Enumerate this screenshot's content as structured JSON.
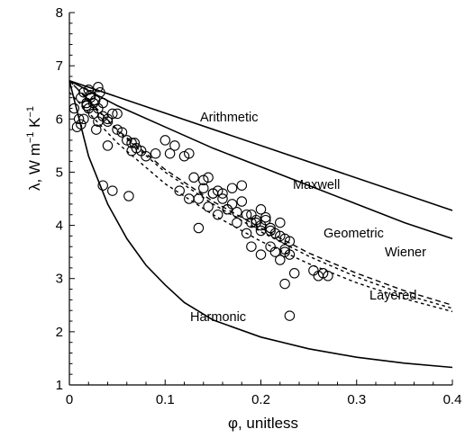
{
  "chart_data": {
    "type": "scatter",
    "xlabel": "φ, unitless",
    "ylabel_parts": {
      "main": "λ, W m",
      "sup1": "−1",
      "mid": " K",
      "sup2": "−1"
    },
    "xlim": [
      0,
      0.4
    ],
    "ylim": [
      1,
      8
    ],
    "x_ticks": [
      0,
      0.1,
      0.2,
      0.3,
      0.4
    ],
    "x_tick_labels": [
      "0",
      "0.1",
      "0.2",
      "0.3",
      "0.4"
    ],
    "y_ticks": [
      1,
      2,
      3,
      4,
      5,
      6,
      7,
      8
    ],
    "y_tick_labels": [
      "1",
      "2",
      "3",
      "4",
      "5",
      "6",
      "7",
      "8"
    ],
    "grid": false,
    "curves": [
      {
        "name": "Arithmetic",
        "style": "solid",
        "x": [
          0,
          0.4
        ],
        "y": [
          6.72,
          4.28
        ]
      },
      {
        "name": "Maxwell",
        "style": "solid",
        "x": [
          0,
          0.05,
          0.1,
          0.15,
          0.2,
          0.25,
          0.3,
          0.35,
          0.4
        ],
        "y": [
          6.72,
          6.25,
          5.85,
          5.45,
          5.1,
          4.75,
          4.4,
          4.05,
          3.75
        ]
      },
      {
        "name": "Geometric",
        "style": "dashed",
        "x": [
          0,
          0.05,
          0.1,
          0.15,
          0.2,
          0.25,
          0.3,
          0.35,
          0.4
        ],
        "y": [
          6.72,
          5.8,
          5.05,
          4.45,
          3.95,
          3.48,
          3.1,
          2.77,
          2.5
        ]
      },
      {
        "name": "Wiener",
        "style": "dotted",
        "x": [
          0,
          0.05,
          0.1,
          0.15,
          0.2,
          0.25,
          0.3,
          0.35,
          0.4
        ],
        "y": [
          6.72,
          5.78,
          5.0,
          4.4,
          3.88,
          3.42,
          3.03,
          2.7,
          2.44
        ]
      },
      {
        "name": "Layered",
        "style": "dotted",
        "x": [
          0,
          0.05,
          0.1,
          0.15,
          0.2,
          0.25,
          0.3,
          0.35,
          0.4
        ],
        "y": [
          6.5,
          5.55,
          4.78,
          4.2,
          3.7,
          3.28,
          2.92,
          2.62,
          2.38
        ]
      },
      {
        "name": "Harmonic",
        "style": "solid",
        "x": [
          0,
          0.02,
          0.04,
          0.06,
          0.08,
          0.1,
          0.12,
          0.15,
          0.2,
          0.25,
          0.3,
          0.35,
          0.4
        ],
        "y": [
          6.72,
          5.3,
          4.4,
          3.75,
          3.25,
          2.88,
          2.55,
          2.22,
          1.9,
          1.68,
          1.52,
          1.41,
          1.33
        ]
      }
    ],
    "points": {
      "x": [
        0.005,
        0.01,
        0.012,
        0.015,
        0.018,
        0.02,
        0.02,
        0.022,
        0.025,
        0.025,
        0.027,
        0.03,
        0.03,
        0.032,
        0.035,
        0.008,
        0.012,
        0.015,
        0.018,
        0.022,
        0.028,
        0.03,
        0.035,
        0.04,
        0.045,
        0.04,
        0.05,
        0.05,
        0.06,
        0.055,
        0.065,
        0.07,
        0.075,
        0.065,
        0.068,
        0.08,
        0.09,
        0.1,
        0.105,
        0.11,
        0.12,
        0.125,
        0.13,
        0.14,
        0.145,
        0.15,
        0.155,
        0.16,
        0.165,
        0.17,
        0.175,
        0.18,
        0.185,
        0.19,
        0.195,
        0.2,
        0.2,
        0.205,
        0.21,
        0.215,
        0.22,
        0.225,
        0.23,
        0.135,
        0.14,
        0.15,
        0.16,
        0.17,
        0.18,
        0.19,
        0.195,
        0.2,
        0.205,
        0.21,
        0.22,
        0.225,
        0.23,
        0.115,
        0.125,
        0.135,
        0.145,
        0.155,
        0.165,
        0.175,
        0.185,
        0.19,
        0.2,
        0.21,
        0.22,
        0.225,
        0.23,
        0.235,
        0.255,
        0.26,
        0.265,
        0.27,
        0.225,
        0.215,
        0.04,
        0.045,
        0.035,
        0.062
      ],
      "y": [
        6.2,
        6.0,
        6.4,
        6.5,
        6.3,
        6.2,
        6.55,
        6.4,
        6.3,
        6.1,
        6.35,
        6.6,
        6.2,
        6.5,
        6.3,
        5.85,
        5.9,
        6.0,
        6.25,
        6.45,
        5.8,
        5.95,
        6.05,
        6.0,
        6.1,
        5.95,
        6.1,
        5.8,
        5.6,
        5.75,
        5.55,
        5.45,
        5.4,
        5.4,
        5.55,
        5.3,
        5.35,
        5.6,
        5.35,
        5.5,
        5.3,
        5.35,
        4.9,
        4.7,
        4.9,
        4.6,
        4.65,
        4.5,
        4.3,
        4.4,
        4.25,
        4.75,
        4.2,
        4.05,
        4.1,
        4.0,
        4.3,
        4.15,
        3.9,
        3.85,
        3.8,
        3.75,
        3.45,
        4.5,
        4.85,
        4.6,
        4.6,
        4.7,
        4.45,
        4.2,
        4.05,
        3.9,
        4.1,
        3.95,
        4.05,
        3.5,
        3.7,
        4.65,
        4.5,
        3.95,
        4.35,
        4.2,
        4.3,
        4.05,
        3.85,
        3.6,
        3.45,
        3.6,
        3.35,
        2.9,
        2.3,
        3.1,
        3.15,
        3.05,
        3.1,
        3.05,
        3.55,
        3.5,
        5.5,
        4.65,
        4.75,
        4.55
      ]
    }
  }
}
